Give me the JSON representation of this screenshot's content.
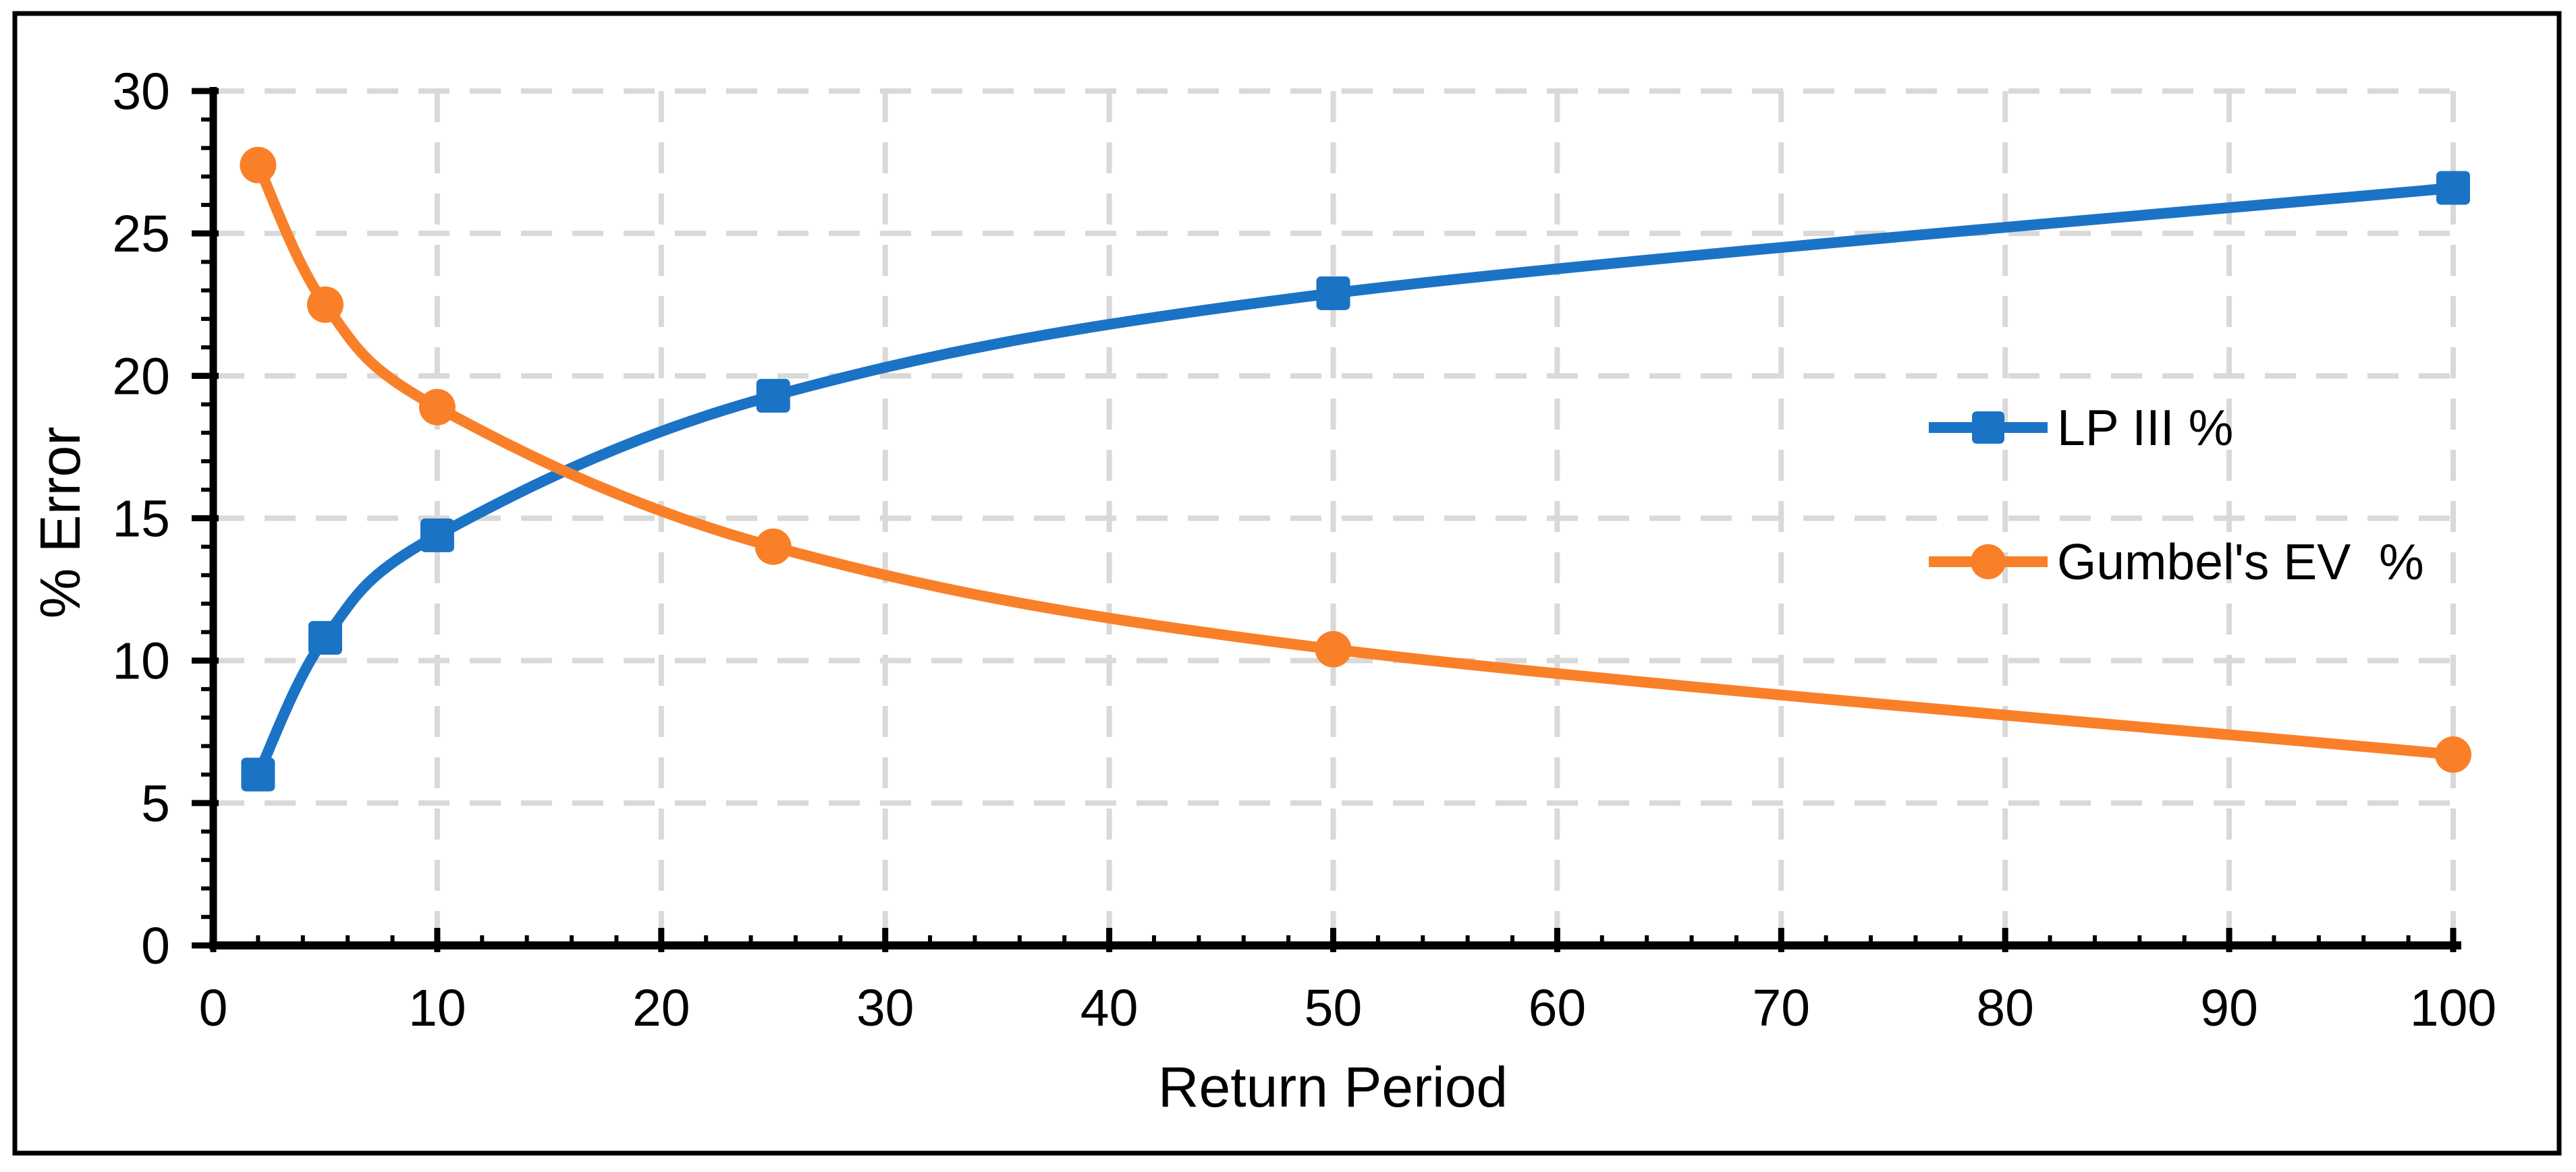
{
  "chart_data": {
    "type": "line",
    "title": "",
    "xlabel": "Return Period",
    "ylabel": "% Error",
    "x": [
      2,
      5,
      10,
      25,
      50,
      100
    ],
    "series": [
      {
        "name": "LP III %",
        "color": "#1B73C6",
        "marker": "square",
        "values": [
          6.0,
          10.8,
          14.4,
          19.3,
          22.9,
          26.6
        ]
      },
      {
        "name": "Gumbel's EV  %",
        "color": "#F98029",
        "marker": "circle",
        "values": [
          27.4,
          22.5,
          18.9,
          14.0,
          10.4,
          6.7
        ]
      }
    ],
    "xlim": [
      0,
      100
    ],
    "ylim": [
      0,
      30
    ],
    "x_ticks": [
      0,
      10,
      20,
      30,
      40,
      50,
      60,
      70,
      80,
      90,
      100
    ],
    "y_ticks": [
      0,
      5,
      10,
      15,
      20,
      25,
      30
    ],
    "x_minor_step": 2,
    "y_minor_step": 1,
    "grid": true,
    "gridline_style": "dashed",
    "legend_position": "right-middle",
    "colors": {
      "gridline": "#D9D9D9",
      "axis": "#000000",
      "border": "#000000",
      "background": "#FFFFFF"
    }
  }
}
